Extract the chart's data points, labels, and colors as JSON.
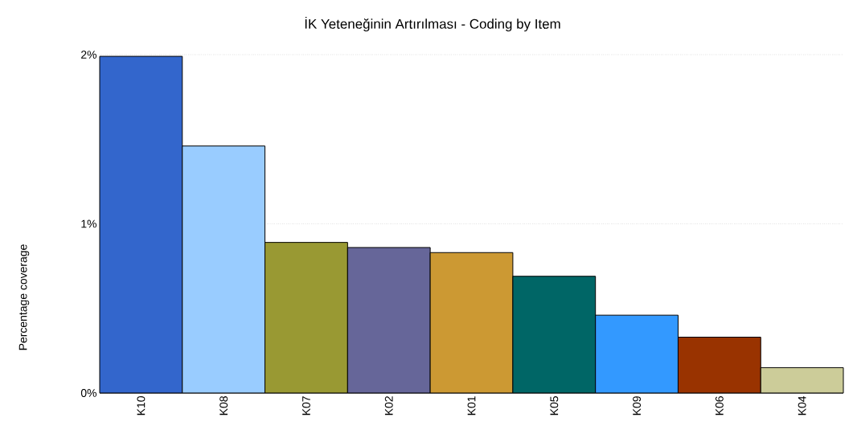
{
  "chart_data": {
    "type": "bar",
    "title": "İK Yeteneğinin Artırılması - Coding by Item",
    "ylabel": "Percentage coverage",
    "categories": [
      "K10",
      "K08",
      "K07",
      "K02",
      "K01",
      "K05",
      "K09",
      "K06",
      "K04"
    ],
    "values": [
      1.99,
      1.46,
      0.89,
      0.86,
      0.83,
      0.69,
      0.46,
      0.33,
      0.15
    ],
    "colors": [
      "#3366cc",
      "#99ccff",
      "#999933",
      "#666699",
      "#cc9933",
      "#006666",
      "#3399ff",
      "#993300",
      "#cccc99"
    ],
    "ylim": [
      0,
      2
    ],
    "yticks": [
      {
        "value": 0,
        "label": "0%"
      },
      {
        "value": 1,
        "label": "1%"
      },
      {
        "value": 2,
        "label": "2%"
      }
    ],
    "grid": "y"
  }
}
